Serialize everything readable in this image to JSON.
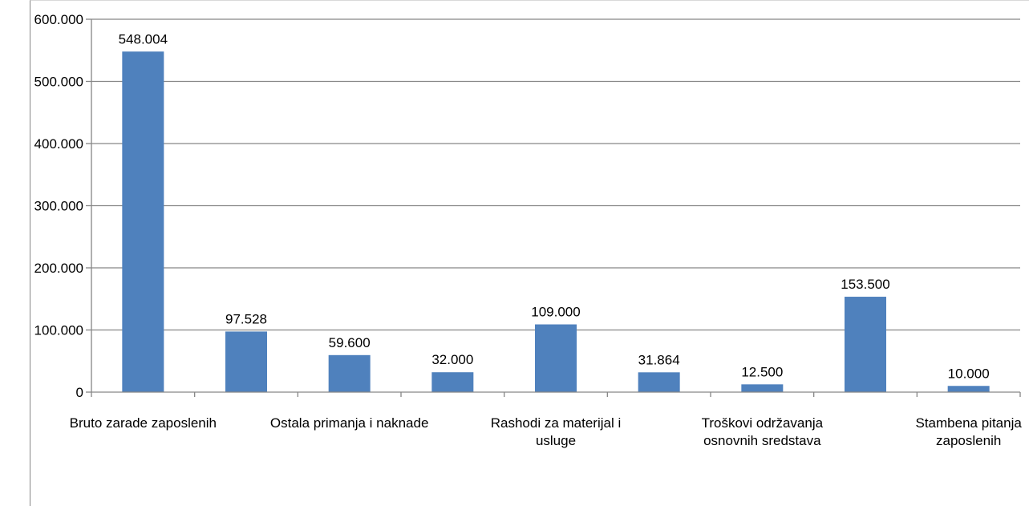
{
  "chart_data": {
    "type": "bar",
    "categories": [
      "Bruto zarade zaposlenih",
      "",
      "Ostala primanja i naknade",
      "",
      "Rashodi za materijal i usluge",
      "",
      "Troškovi održavanja osnovnih sredstava",
      "",
      "Stambena pitanja zaposlenih"
    ],
    "category_label_lines": [
      [
        "Bruto zarade zaposlenih"
      ],
      [],
      [
        "Ostala primanja i naknade"
      ],
      [],
      [
        "Rashodi za materijal i",
        "usluge"
      ],
      [],
      [
        "Troškovi održavanja",
        "osnovnih sredstava"
      ],
      [],
      [
        "Stambena pitanja",
        "zaposlenih"
      ]
    ],
    "values": [
      548004,
      97528,
      59600,
      32000,
      109000,
      31864,
      12500,
      153500,
      10000
    ],
    "data_labels": [
      "548.004",
      "97.528",
      "59.600",
      "32.000",
      "109.000",
      "31.864",
      "12.500",
      "153.500",
      "10.000"
    ],
    "y_ticks": [
      0,
      100000,
      200000,
      300000,
      400000,
      500000,
      600000
    ],
    "y_tick_labels": [
      "0",
      "100.000",
      "200.000",
      "300.000",
      "400.000",
      "500.000",
      "600.000"
    ],
    "ylim": [
      0,
      600000
    ],
    "title": "",
    "xlabel": "",
    "ylabel": "",
    "grid": true,
    "legend": "none",
    "bar_color": "#4f81bd",
    "grid_color": "#868686"
  }
}
